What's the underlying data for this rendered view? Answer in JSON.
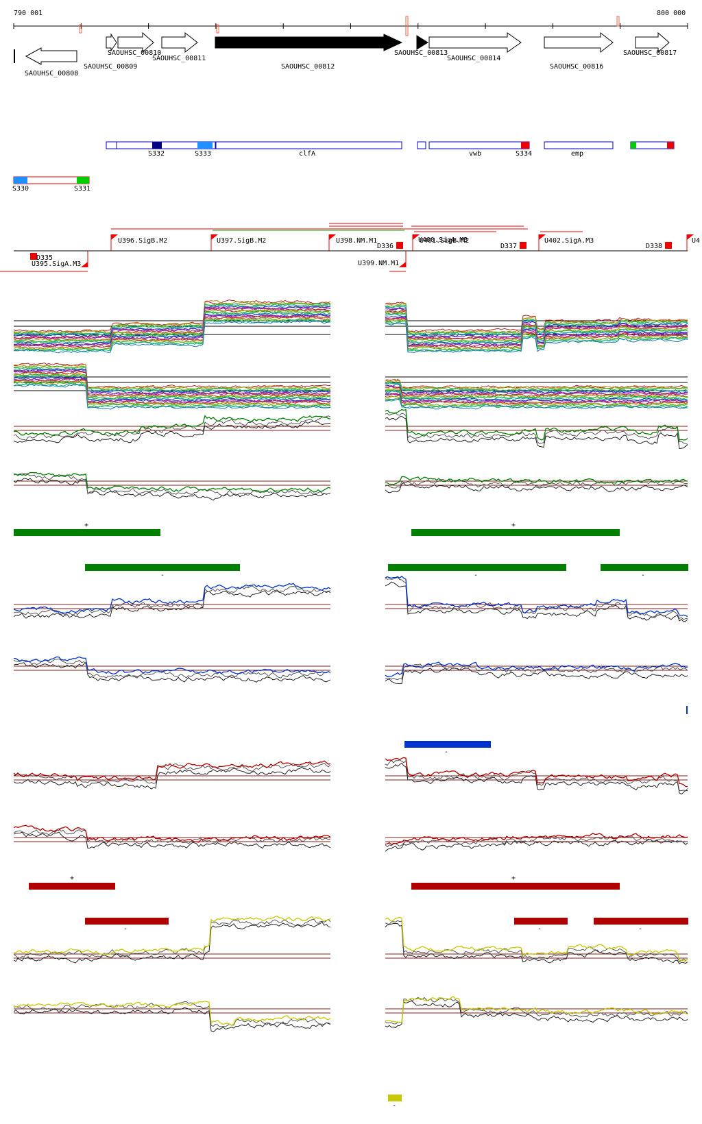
{
  "coords": {
    "start": "790 001",
    "end": "800 000"
  },
  "colors": {
    "gene_fill_dark": "#000000",
    "annotation_blue": "#0000cc",
    "marker_red": "#ee0000",
    "marker_lightblue": "#1e90ff",
    "marker_navy": "#000080",
    "marker_green": "#00cc00",
    "green_track": "#008000",
    "blue_track": "#0033cc",
    "red_track": "#b00000",
    "yellow_track": "#c8c800",
    "threshold": "#8b1a1a"
  },
  "genes": [
    {
      "id": "SAOUHSC_00808",
      "strand": "-",
      "filled": false
    },
    {
      "id": "SAOUHSC_00809",
      "strand": "+",
      "filled": false
    },
    {
      "id": "SAOUHSC_00810",
      "strand": "+",
      "filled": false
    },
    {
      "id": "SAOUHSC_00811",
      "strand": "+",
      "filled": false
    },
    {
      "id": "SAOUHSC_00812",
      "strand": "+",
      "filled": true
    },
    {
      "id": "SAOUHSC_00813",
      "strand": "+",
      "filled": true
    },
    {
      "id": "SAOUHSC_00814",
      "strand": "+",
      "filled": false
    },
    {
      "id": "SAOUHSC_00816",
      "strand": "+",
      "filled": false
    },
    {
      "id": "SAOUHSC_00817",
      "strand": "+",
      "filled": false
    }
  ],
  "annotations": [
    {
      "label": "S332"
    },
    {
      "label": "S333"
    },
    {
      "label": "clfA"
    },
    {
      "label": "vwb"
    },
    {
      "label": "S334"
    },
    {
      "label": "emp"
    },
    {
      "label": "S330"
    },
    {
      "label": "S331"
    }
  ],
  "promoters": [
    {
      "label": "U396.SigB.M2"
    },
    {
      "label": "U397.SigB.M2"
    },
    {
      "label": "U398.NM.M1"
    },
    {
      "label": "U400.SigA.M3"
    },
    {
      "label": "U401.SigB.M2"
    },
    {
      "label": "U402.SigA.M3"
    },
    {
      "label": "U4"
    },
    {
      "label": "U395.SigA.M3"
    },
    {
      "label": "U399.NM.M1"
    }
  ],
  "terminators": [
    {
      "label": "D335"
    },
    {
      "label": "D336"
    },
    {
      "label": "D337"
    },
    {
      "label": "D338"
    }
  ],
  "strand_labels": {
    "plus": "+",
    "minus": "-"
  }
}
